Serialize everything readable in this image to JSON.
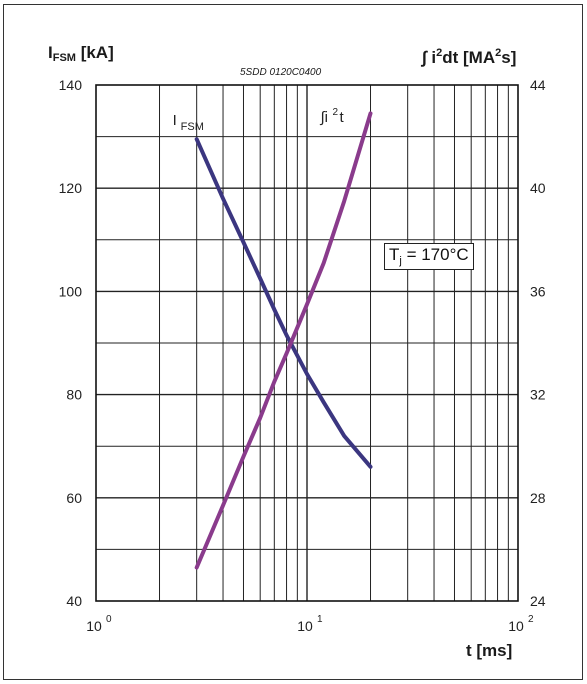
{
  "chart_data": {
    "type": "line",
    "part_number": "5SDD 0120C0400",
    "ylabel_left": {
      "main": "I",
      "sub": "FSM",
      "unit": " [kA]"
    },
    "ylabel_right": {
      "prefix": "∫ i",
      "sup": "2",
      "mid": "dt [MA",
      "sup2": "2",
      "suffix": "s]"
    },
    "xlabel": "t [ms]",
    "x_scale": "log",
    "xlim": [
      1,
      100
    ],
    "x_ticks": [
      {
        "value": 1,
        "base": "10",
        "exp": "0"
      },
      {
        "value": 10,
        "base": "10",
        "exp": "1"
      },
      {
        "value": 100,
        "base": "10",
        "exp": "2"
      }
    ],
    "ylim_left": [
      40,
      140
    ],
    "yticks_left": [
      "140",
      "120",
      "100",
      "80",
      "60",
      "40"
    ],
    "ylim_right": [
      24,
      44
    ],
    "yticks_right": [
      "44",
      "40",
      "36",
      "32",
      "28",
      "24"
    ],
    "grid": true,
    "annotation": {
      "main": "T",
      "sub": "j",
      "rest": " = 170°C"
    },
    "series": [
      {
        "name": "I_FSM",
        "label_main": "I",
        "label_sub": "FSM",
        "axis": "left",
        "color": "#3b3680",
        "points": [
          [
            3,
            129.5
          ],
          [
            4,
            118
          ],
          [
            5,
            109.5
          ],
          [
            6,
            102.5
          ],
          [
            7,
            96.5
          ],
          [
            8,
            91.5
          ],
          [
            10,
            84
          ],
          [
            12,
            78.5
          ],
          [
            15,
            72
          ],
          [
            20,
            66
          ]
        ]
      },
      {
        "name": "∫i²t",
        "label_main": "∫i",
        "label_sup": "2",
        "label_rest": "t",
        "axis": "right",
        "color": "#8a3b8c",
        "points": [
          [
            3,
            25.3
          ],
          [
            4,
            27.7
          ],
          [
            5,
            29.6
          ],
          [
            6,
            31.1
          ],
          [
            7,
            32.5
          ],
          [
            8,
            33.6
          ],
          [
            10,
            35.5
          ],
          [
            12,
            37.1
          ],
          [
            15,
            39.5
          ],
          [
            20,
            42.9
          ]
        ]
      }
    ]
  }
}
